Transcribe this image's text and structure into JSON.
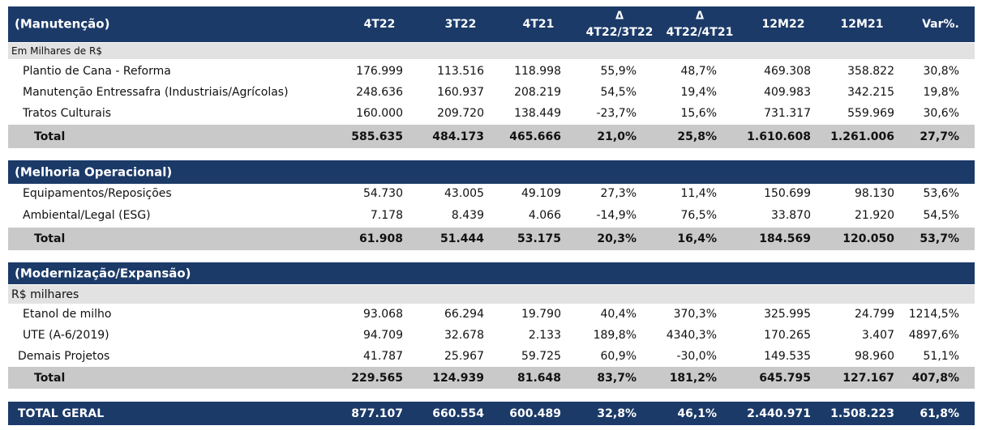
{
  "header": {
    "title": "(Manutenção)",
    "columns": [
      {
        "label": "4T22"
      },
      {
        "label": "3T22"
      },
      {
        "label": "4T21"
      },
      {
        "top": "Δ",
        "label": "4T22/3T22"
      },
      {
        "top": "Δ",
        "label": "4T22/4T21"
      },
      {
        "label": "12M22"
      },
      {
        "label": "12M21"
      },
      {
        "label": "Var%."
      }
    ]
  },
  "sections": [
    {
      "title": "(Manutenção)",
      "unit": "Em Milhares de R$",
      "rows": [
        {
          "label": "Plantio de Cana - Reforma",
          "values": [
            "176.999",
            "113.516",
            "118.998",
            "55,9%",
            "48,7%",
            "469.308",
            "358.822",
            "30,8%"
          ]
        },
        {
          "label": "Manutenção Entressafra (Industriais/Agrícolas)",
          "values": [
            "248.636",
            "160.937",
            "208.219",
            "54,5%",
            "19,4%",
            "409.983",
            "342.215",
            "19,8%"
          ]
        },
        {
          "label": "Tratos Culturais",
          "values": [
            "160.000",
            "209.720",
            "138.449",
            "-23,7%",
            "15,6%",
            "731.317",
            "559.969",
            "30,6%"
          ]
        }
      ],
      "total": {
        "label": "Total",
        "values": [
          "585.635",
          "484.173",
          "465.666",
          "21,0%",
          "25,8%",
          "1.610.608",
          "1.261.006",
          "27,7%"
        ]
      }
    },
    {
      "title": "(Melhoria Operacional)",
      "rows": [
        {
          "label": "Equipamentos/Reposições",
          "values": [
            "54.730",
            "43.005",
            "49.109",
            "27,3%",
            "11,4%",
            "150.699",
            "98.130",
            "53,6%"
          ]
        },
        {
          "label": "Ambiental/Legal (ESG)",
          "values": [
            "7.178",
            "8.439",
            "4.066",
            "-14,9%",
            "76,5%",
            "33.870",
            "21.920",
            "54,5%"
          ]
        }
      ],
      "total": {
        "label": "Total",
        "values": [
          "61.908",
          "51.444",
          "53.175",
          "20,3%",
          "16,4%",
          "184.569",
          "120.050",
          "53,7%"
        ]
      }
    },
    {
      "title": "(Modernização/Expansão)",
      "unit": "R$ milhares",
      "rows": [
        {
          "label": "Etanol de milho",
          "values": [
            "93.068",
            "66.294",
            "19.790",
            "40,4%",
            "370,3%",
            "325.995",
            "24.799",
            "1214,5%"
          ]
        },
        {
          "label": "UTE (A-6/2019)",
          "values": [
            "94.709",
            "32.678",
            "2.133",
            "189,8%",
            "4340,3%",
            "170.265",
            "3.407",
            "4897,6%"
          ]
        },
        {
          "label": "Demais Projetos",
          "values": [
            "41.787",
            "25.967",
            "59.725",
            "60,9%",
            "-30,0%",
            "149.535",
            "98.960",
            "51,1%"
          ]
        }
      ],
      "total": {
        "label": "Total",
        "values": [
          "229.565",
          "124.939",
          "81.648",
          "83,7%",
          "181,2%",
          "645.795",
          "127.167",
          "407,8%"
        ]
      }
    }
  ],
  "grand_total": {
    "label": "TOTAL GERAL",
    "values": [
      "877.107",
      "660.554",
      "600.489",
      "32,8%",
      "46,1%",
      "2.440.971",
      "1.508.223",
      "61,8%"
    ]
  }
}
